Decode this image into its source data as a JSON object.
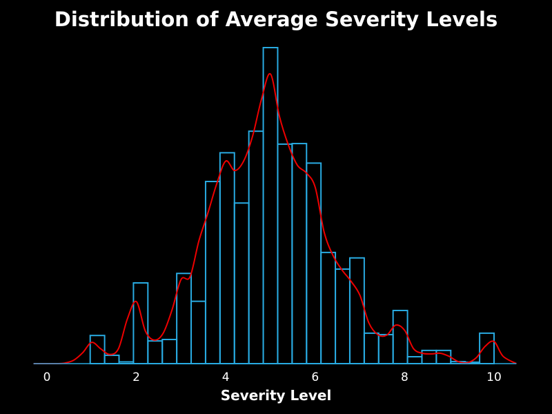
{
  "chart_data": {
    "type": "histogram",
    "title": "Distribution of Average Severity Levels",
    "xlabel": "Severity Level",
    "ylabel": "",
    "xlim": [
      -0.3,
      10.5
    ],
    "ylim": [
      0,
      110
    ],
    "xticks": [
      0,
      2,
      4,
      6,
      8,
      10
    ],
    "grid": false,
    "legend": "none",
    "bin_width": 0.3226,
    "bins": [
      {
        "x0": 0.0,
        "count": 0
      },
      {
        "x0": 0.3226,
        "count": 0
      },
      {
        "x0": 0.6452,
        "count": 0
      },
      {
        "x0": 0.9677,
        "count": 9.8
      },
      {
        "x0": 1.2903,
        "count": 2.9
      },
      {
        "x0": 1.6129,
        "count": 0.6
      },
      {
        "x0": 1.9355,
        "count": 28.1
      },
      {
        "x0": 2.2581,
        "count": 7.9
      },
      {
        "x0": 2.5806,
        "count": 8.4
      },
      {
        "x0": 2.9032,
        "count": 31.4
      },
      {
        "x0": 3.2258,
        "count": 21.7
      },
      {
        "x0": 3.5484,
        "count": 63.4
      },
      {
        "x0": 3.871,
        "count": 73.4
      },
      {
        "x0": 4.1935,
        "count": 55.9
      },
      {
        "x0": 4.5161,
        "count": 80.9
      },
      {
        "x0": 4.8387,
        "count": 110.0
      },
      {
        "x0": 5.1613,
        "count": 76.4
      },
      {
        "x0": 5.4839,
        "count": 76.6
      },
      {
        "x0": 5.8065,
        "count": 69.8
      },
      {
        "x0": 6.129,
        "count": 38.7
      },
      {
        "x0": 6.4516,
        "count": 32.9
      },
      {
        "x0": 6.7742,
        "count": 36.8
      },
      {
        "x0": 7.0968,
        "count": 10.6
      },
      {
        "x0": 7.4194,
        "count": 10.1
      },
      {
        "x0": 7.7419,
        "count": 18.5
      },
      {
        "x0": 8.0645,
        "count": 2.4
      },
      {
        "x0": 8.3871,
        "count": 4.6
      },
      {
        "x0": 8.7097,
        "count": 4.6
      },
      {
        "x0": 9.0323,
        "count": 0.7
      },
      {
        "x0": 9.3548,
        "count": 0.5
      },
      {
        "x0": 9.6774,
        "count": 10.6
      }
    ],
    "kde": {
      "x": [
        -0.3,
        0.2,
        0.4,
        0.6,
        0.8,
        1.0,
        1.2,
        1.4,
        1.6,
        1.8,
        2.0,
        2.2,
        2.4,
        2.6,
        2.8,
        3.0,
        3.2,
        3.4,
        3.6,
        3.8,
        4.0,
        4.2,
        4.4,
        4.6,
        4.8,
        5.0,
        5.2,
        5.4,
        5.6,
        5.8,
        6.0,
        6.2,
        6.4,
        6.6,
        6.8,
        7.0,
        7.2,
        7.4,
        7.6,
        7.8,
        8.0,
        8.2,
        8.4,
        8.6,
        8.8,
        9.0,
        9.2,
        9.4,
        9.6,
        9.8,
        10.0,
        10.2,
        10.5
      ],
      "y": [
        0,
        0,
        0.2,
        1.2,
        3.8,
        7.4,
        5.2,
        3.2,
        5.2,
        15.6,
        21.6,
        11.4,
        8.2,
        10.6,
        18.8,
        29.3,
        30.2,
        42.8,
        52.4,
        62.7,
        70.5,
        67.2,
        70.5,
        79.2,
        92.1,
        100.8,
        86.1,
        76.1,
        69.1,
        66.4,
        61.4,
        45.8,
        37.6,
        32.6,
        28.7,
        23.8,
        14.2,
        10.1,
        9.9,
        13.4,
        11.6,
        5.2,
        3.6,
        3.4,
        3.6,
        2.5,
        0.7,
        0.3,
        2.0,
        6.0,
        7.7,
        2.6,
        0
      ]
    },
    "colors": {
      "background": "#000000",
      "bar_edge": "#29abe2",
      "kde_line": "#ee0000",
      "text": "#ffffff"
    }
  }
}
